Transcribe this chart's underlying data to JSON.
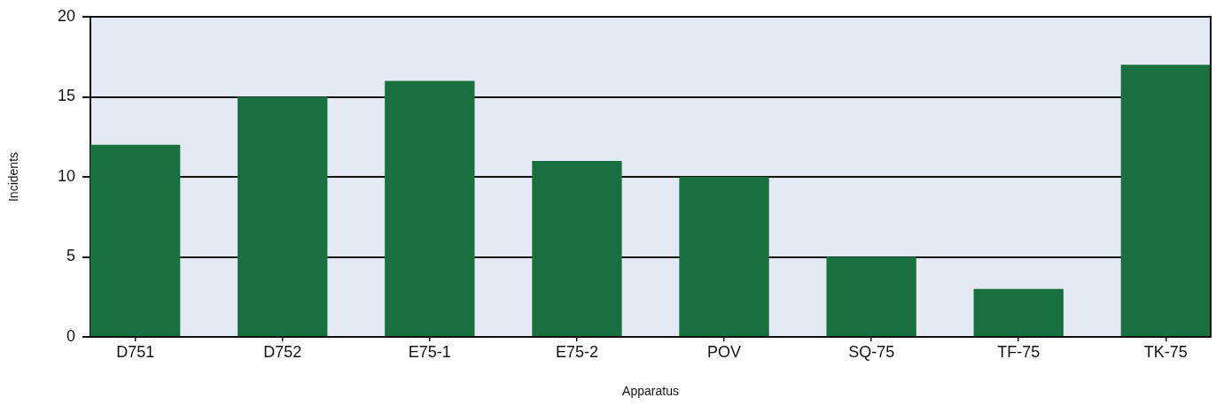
{
  "chart_data": {
    "type": "bar",
    "categories": [
      "D751",
      "D752",
      "E75-1",
      "E75-2",
      "POV",
      "SQ-75",
      "TF-75",
      "TK-75"
    ],
    "values": [
      12,
      15,
      16,
      11,
      10,
      5,
      3,
      17
    ],
    "color": "#18703f",
    "xlabel": "Apparatus",
    "ylabel": "Incidents",
    "ylim": [
      0,
      20
    ],
    "yticks": [
      0,
      5,
      10,
      15,
      20
    ],
    "grid": "y"
  }
}
